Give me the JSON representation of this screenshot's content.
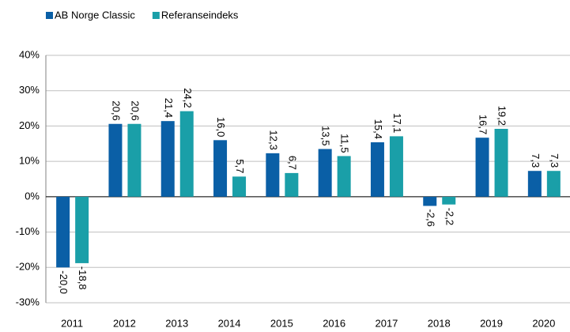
{
  "chart_data": {
    "type": "bar",
    "categories": [
      "2011",
      "2012",
      "2013",
      "2014",
      "2015",
      "2016",
      "2017",
      "2018",
      "2019",
      "2020"
    ],
    "series": [
      {
        "name": "AB Norge Classic",
        "color": "#0a5fa6",
        "values": [
          -20.0,
          20.6,
          21.4,
          16.0,
          12.3,
          13.5,
          15.4,
          -2.6,
          16.7,
          7.3
        ],
        "value_labels": [
          "-20,0",
          "20,6",
          "21,4",
          "16,0",
          "12,3",
          "13,5",
          "15,4",
          "-2,6",
          "16,7",
          "7,3"
        ]
      },
      {
        "name": "Referanseindeks",
        "color": "#1a9fa8",
        "values": [
          -18.8,
          20.6,
          24.2,
          5.7,
          6.7,
          11.5,
          17.1,
          -2.2,
          19.2,
          7.3
        ],
        "value_labels": [
          "-18,8",
          "20,6",
          "24,2",
          "5,7",
          "6,7",
          "11,5",
          "17,1",
          "-2,2",
          "19,2",
          "7,3"
        ]
      }
    ],
    "ylim": [
      -30,
      40
    ],
    "yticks": [
      {
        "value": -30,
        "label": "-30%"
      },
      {
        "value": -20,
        "label": "-20%"
      },
      {
        "value": -10,
        "label": "-10%"
      },
      {
        "value": 0,
        "label": "0%"
      },
      {
        "value": 10,
        "label": "10%"
      },
      {
        "value": 20,
        "label": "20%"
      },
      {
        "value": 30,
        "label": "30%"
      },
      {
        "value": 40,
        "label": "40%"
      }
    ],
    "grid": true,
    "legend": "top-left"
  }
}
